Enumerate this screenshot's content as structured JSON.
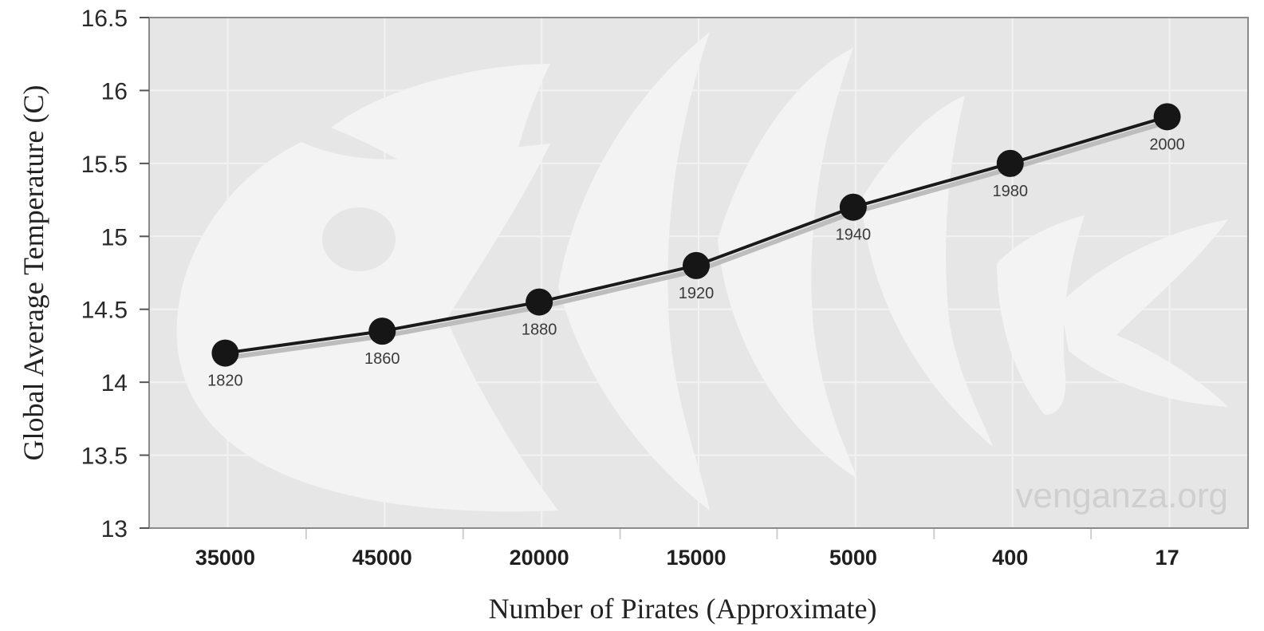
{
  "chart_data": {
    "type": "line",
    "xlabel": "Number of Pirates (Approximate)",
    "ylabel": "Global Average Temperature (C)",
    "categories": [
      "35000",
      "45000",
      "20000",
      "15000",
      "5000",
      "400",
      "17"
    ],
    "values": [
      14.2,
      14.35,
      14.55,
      14.8,
      15.2,
      15.5,
      15.82
    ],
    "point_labels": [
      "1820",
      "1860",
      "1880",
      "1920",
      "1940",
      "1980",
      "2000"
    ],
    "ylim": [
      13,
      16.5
    ],
    "yticks": [
      "13",
      "13.5",
      "14",
      "14.5",
      "15",
      "15.5",
      "16",
      "16.5"
    ],
    "grid": true,
    "watermark": "venganza.org",
    "colors": {
      "plot_bg": "#e6e6e6",
      "line": "#1a1a1a",
      "marker": "#161616",
      "grid": "#f2f2f2",
      "fish": "#f3f3f3"
    }
  }
}
